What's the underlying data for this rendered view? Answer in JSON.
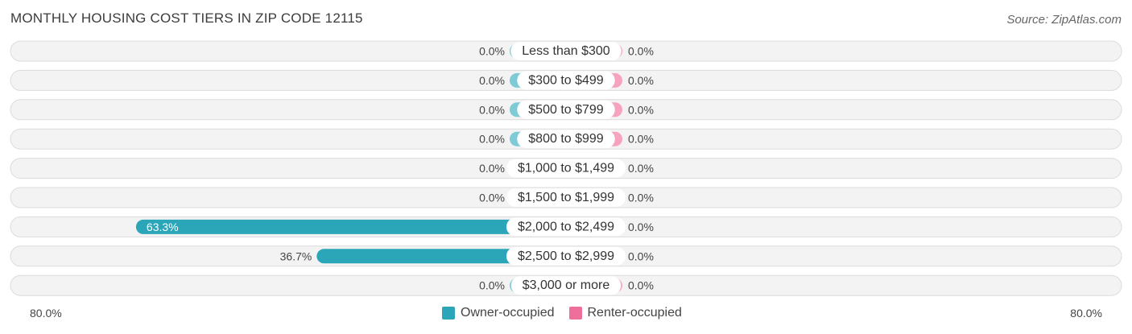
{
  "title": "MONTHLY HOUSING COST TIERS IN ZIP CODE 12115",
  "source": "Source: ZipAtlas.com",
  "axis": {
    "left_label": "80.0%",
    "right_label": "80.0%"
  },
  "legend": {
    "owner_label": "Owner-occupied",
    "renter_label": "Renter-occupied"
  },
  "colors": {
    "owner_dark": "#2ba5b8",
    "owner_light": "#7ecbd6",
    "renter": "#f5a3c0",
    "renter_legend": "#ee6f9b",
    "row_bg": "#eeeeee"
  },
  "chart_data": {
    "type": "bar",
    "orientation": "horizontal-diverging",
    "xlim": [
      -80,
      80
    ],
    "categories": [
      "Less than $300",
      "$300 to $499",
      "$500 to $799",
      "$800 to $999",
      "$1,000 to $1,499",
      "$1,500 to $1,999",
      "$2,000 to $2,499",
      "$2,500 to $2,999",
      "$3,000 or more"
    ],
    "series": [
      {
        "name": "Owner-occupied",
        "values": [
          0.0,
          0.0,
          0.0,
          0.0,
          0.0,
          0.0,
          63.3,
          36.7,
          0.0
        ],
        "labels": [
          "0.0%",
          "0.0%",
          "0.0%",
          "0.0%",
          "0.0%",
          "0.0%",
          "63.3%",
          "36.7%",
          "0.0%"
        ]
      },
      {
        "name": "Renter-occupied",
        "values": [
          0.0,
          0.0,
          0.0,
          0.0,
          0.0,
          0.0,
          0.0,
          0.0,
          0.0
        ],
        "labels": [
          "0.0%",
          "0.0%",
          "0.0%",
          "0.0%",
          "0.0%",
          "0.0%",
          "0.0%",
          "0.0%",
          "0.0%"
        ]
      }
    ]
  }
}
